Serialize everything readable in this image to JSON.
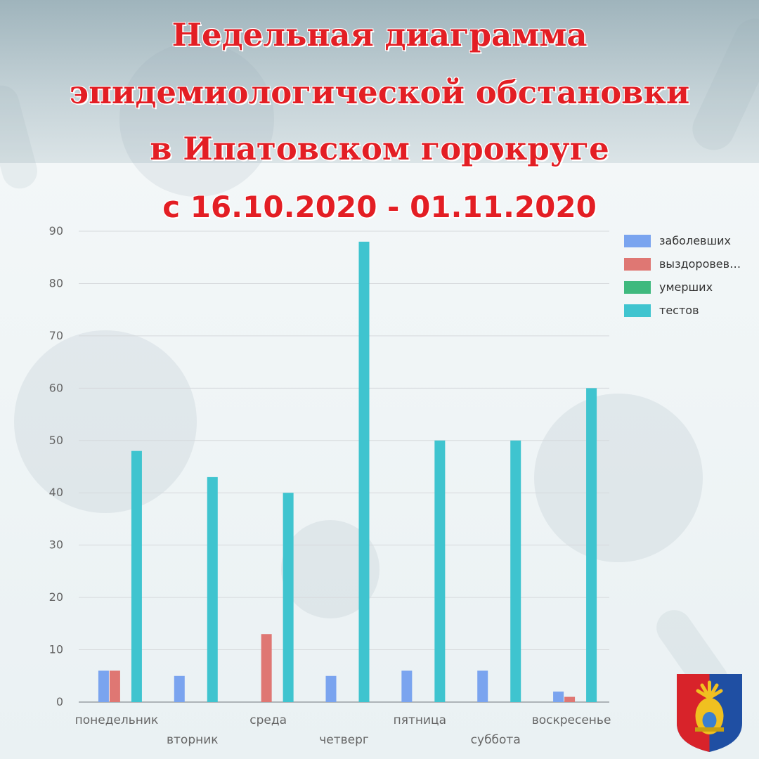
{
  "header": {
    "title_line1": "Недельная диаграмма",
    "title_line2": "эпидемиологической обстановки",
    "title_line3": "в Ипатовском горокруге",
    "title_line4": "с 16.10.2020 - 01.11.2020"
  },
  "colors": {
    "title": "#e31e24",
    "grid": "#d6d9dc",
    "axis": "#9aa0a4",
    "tick_label": "#666666"
  },
  "legend": [
    {
      "label": "заболевших",
      "color": "#7aa4ef"
    },
    {
      "label": "выздоровев…",
      "color": "#df7773"
    },
    {
      "label": "умерших",
      "color": "#3fb97e"
    },
    {
      "label": "тестов",
      "color": "#3fc4cf"
    }
  ],
  "emblem": {
    "name": "coat-of-arms-icon"
  },
  "chart_data": {
    "type": "bar",
    "categories": [
      "понедельник",
      "вторник",
      "среда",
      "четверг",
      "пятница",
      "суббота",
      "воскресенье"
    ],
    "series": [
      {
        "name": "заболевших",
        "values": [
          6,
          5,
          0,
          5,
          6,
          6,
          2
        ]
      },
      {
        "name": "выздоровев…",
        "values": [
          6,
          0,
          13,
          0,
          0,
          0,
          1
        ]
      },
      {
        "name": "умерших",
        "values": [
          0,
          0,
          0,
          0,
          0,
          0,
          0
        ]
      },
      {
        "name": "тестов",
        "values": [
          48,
          43,
          40,
          88,
          50,
          50,
          60
        ]
      }
    ],
    "yticks": [
      0,
      10,
      20,
      30,
      40,
      50,
      60,
      70,
      80,
      90
    ],
    "ylim": [
      0,
      90
    ],
    "grid": true,
    "legend_position": "right"
  }
}
